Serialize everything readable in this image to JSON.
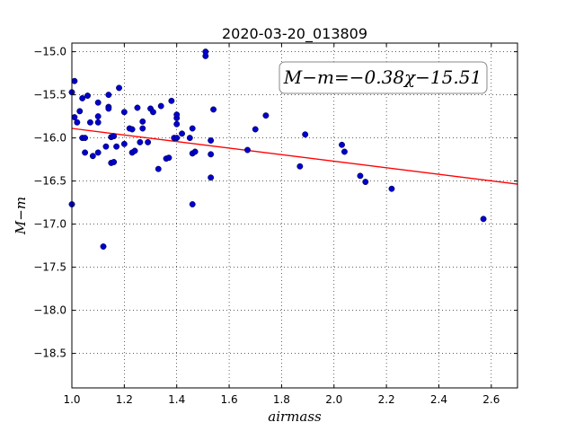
{
  "chart_data": {
    "type": "scatter",
    "title": "2020-03-20_013809",
    "xlabel": "airmass",
    "ylabel": "M−m",
    "xlim": [
      1.0,
      2.7
    ],
    "ylim": [
      -18.9,
      -14.9
    ],
    "y_inverted": true,
    "grid": true,
    "grid_style": "dotted",
    "xticks": [
      "1.0",
      "1.2",
      "1.4",
      "1.6",
      "1.8",
      "2.0",
      "2.2",
      "2.4",
      "2.6"
    ],
    "xtick_values": [
      1.0,
      1.2,
      1.4,
      1.6,
      1.8,
      2.0,
      2.2,
      2.4,
      2.6
    ],
    "yticks": [
      "−15.0",
      "−15.5",
      "−16.0",
      "−16.5",
      "−17.0",
      "−17.5",
      "−18.0",
      "−18.5"
    ],
    "ytick_values": [
      -15.0,
      -15.5,
      -16.0,
      -16.5,
      -17.0,
      -17.5,
      -18.0,
      -18.5
    ],
    "annotation": "M−m=−0.38χ−15.51",
    "colors": {
      "points": "#0000cc",
      "fit": "#ff0000"
    },
    "fit": {
      "slope": -0.38,
      "intercept": -15.51
    },
    "points": [
      [
        1.0,
        -15.47
      ],
      [
        1.01,
        -15.34
      ],
      [
        1.0,
        -16.77
      ],
      [
        1.01,
        -15.76
      ],
      [
        1.02,
        -15.82
      ],
      [
        1.03,
        -15.69
      ],
      [
        1.04,
        -16.0
      ],
      [
        1.04,
        -15.54
      ],
      [
        1.05,
        -16.0
      ],
      [
        1.06,
        -15.51
      ],
      [
        1.05,
        -16.17
      ],
      [
        1.07,
        -15.82
      ],
      [
        1.08,
        -16.21
      ],
      [
        1.1,
        -15.59
      ],
      [
        1.1,
        -15.75
      ],
      [
        1.1,
        -15.82
      ],
      [
        1.1,
        -16.17
      ],
      [
        1.12,
        -17.26
      ],
      [
        1.13,
        -16.1
      ],
      [
        1.14,
        -15.64
      ],
      [
        1.14,
        -15.5
      ],
      [
        1.14,
        -15.66
      ],
      [
        1.15,
        -15.99
      ],
      [
        1.15,
        -16.29
      ],
      [
        1.16,
        -15.98
      ],
      [
        1.16,
        -16.28
      ],
      [
        1.17,
        -16.1
      ],
      [
        1.18,
        -15.42
      ],
      [
        1.2,
        -15.7
      ],
      [
        1.2,
        -16.07
      ],
      [
        1.22,
        -15.89
      ],
      [
        1.23,
        -16.17
      ],
      [
        1.23,
        -15.9
      ],
      [
        1.24,
        -16.15
      ],
      [
        1.25,
        -15.65
      ],
      [
        1.26,
        -16.05
      ],
      [
        1.27,
        -15.81
      ],
      [
        1.27,
        -15.89
      ],
      [
        1.29,
        -16.05
      ],
      [
        1.3,
        -15.66
      ],
      [
        1.31,
        -15.7
      ],
      [
        1.33,
        -16.36
      ],
      [
        1.34,
        -15.63
      ],
      [
        1.36,
        -16.24
      ],
      [
        1.37,
        -16.23
      ],
      [
        1.38,
        -15.57
      ],
      [
        1.39,
        -16.0
      ],
      [
        1.4,
        -15.84
      ],
      [
        1.4,
        -15.77
      ],
      [
        1.4,
        -15.73
      ],
      [
        1.4,
        -16.0
      ],
      [
        1.42,
        -15.95
      ],
      [
        1.45,
        -16.0
      ],
      [
        1.46,
        -16.77
      ],
      [
        1.46,
        -15.89
      ],
      [
        1.46,
        -16.18
      ],
      [
        1.47,
        -16.16
      ],
      [
        1.51,
        -15.0
      ],
      [
        1.51,
        -15.05
      ],
      [
        1.53,
        -16.46
      ],
      [
        1.53,
        -16.03
      ],
      [
        1.53,
        -16.19
      ],
      [
        1.54,
        -15.67
      ],
      [
        1.67,
        -16.14
      ],
      [
        1.7,
        -15.9
      ],
      [
        1.74,
        -15.74
      ],
      [
        1.87,
        -16.33
      ],
      [
        1.89,
        -15.96
      ],
      [
        2.03,
        -16.08
      ],
      [
        2.04,
        -16.16
      ],
      [
        2.1,
        -16.44
      ],
      [
        2.12,
        -16.51
      ],
      [
        2.22,
        -16.59
      ],
      [
        2.57,
        -16.94
      ]
    ]
  }
}
